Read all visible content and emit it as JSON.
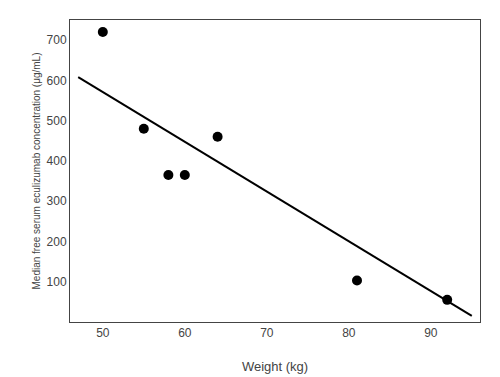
{
  "chart_data": {
    "type": "scatter",
    "xlabel": "Weight (kg)",
    "ylabel": "Median free serum eculizumab concentration (μg/mL)",
    "series": [
      {
        "type": "scatter",
        "x": [
          50,
          55,
          58,
          60,
          64,
          81,
          92
        ],
        "values": [
          720,
          480,
          365,
          365,
          460,
          103,
          55
        ],
        "color": "#000000",
        "marker": "circle"
      },
      {
        "type": "line",
        "x": [
          47,
          95
        ],
        "values": [
          608,
          15
        ],
        "color": "#000000",
        "line_style": "solid"
      }
    ],
    "xlim": [
      46,
      96
    ],
    "ylim": [
      0,
      750
    ],
    "xticks": [
      50,
      60,
      70,
      80,
      90
    ],
    "yticks": [
      100,
      200,
      300,
      400,
      500,
      600,
      700
    ],
    "grid": false
  }
}
